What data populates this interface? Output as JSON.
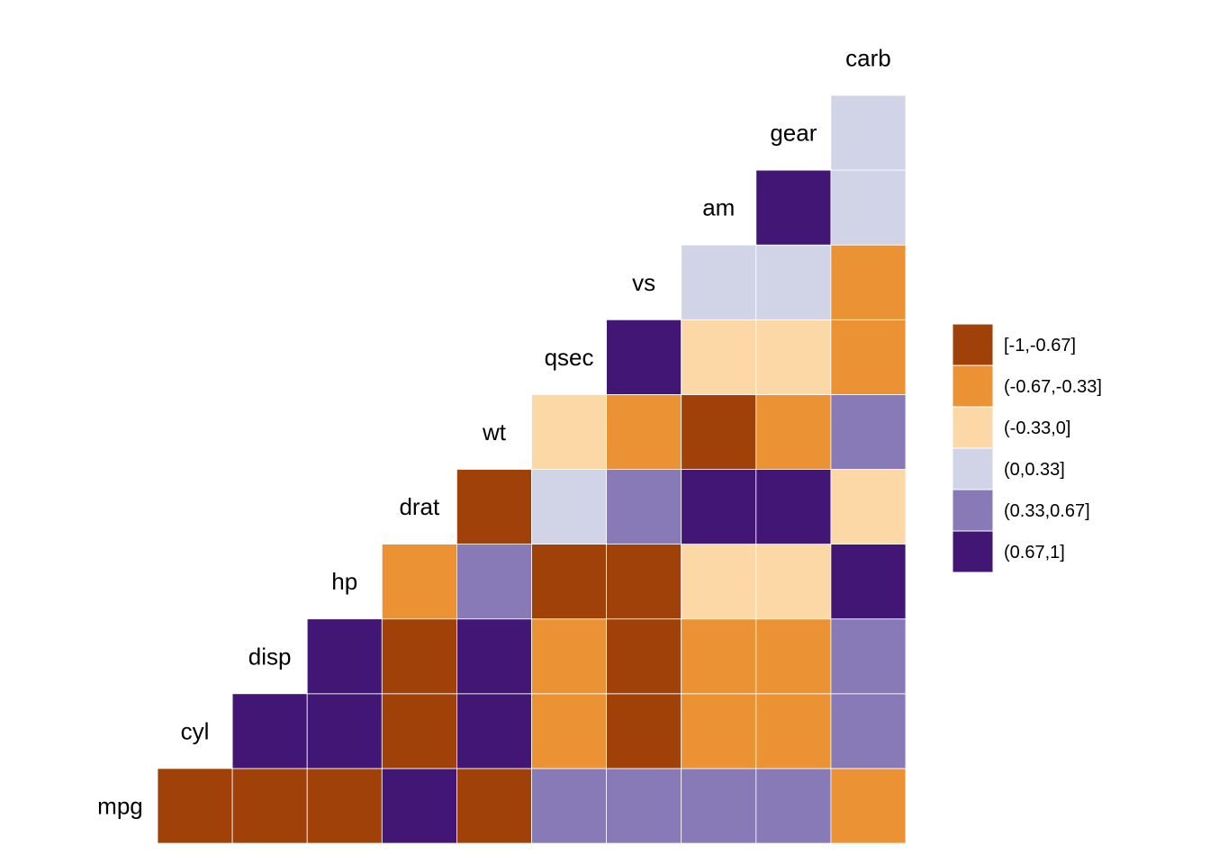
{
  "chart_data": {
    "type": "heatmap",
    "variables": [
      "mpg",
      "cyl",
      "disp",
      "hp",
      "drat",
      "wt",
      "qsec",
      "vs",
      "am",
      "gear",
      "carb"
    ],
    "legend": {
      "bins": [
        {
          "label": "[-1,-0.67]",
          "color": "#A04109"
        },
        {
          "label": "(-0.67,-0.33]",
          "color": "#EB9334"
        },
        {
          "label": "(-0.33,0]",
          "color": "#FDD8A7"
        },
        {
          "label": "(0,0.33]",
          "color": "#D1D3E6"
        },
        {
          "label": "(0.33,0.67]",
          "color": "#8879B7"
        },
        {
          "label": "(0.67,1]",
          "color": "#411675"
        }
      ]
    },
    "cells": [
      {
        "row": "mpg",
        "col": "mpg",
        "bin": "[-1,-0.67]"
      },
      {
        "row": "mpg",
        "col": "cyl",
        "bin": "[-1,-0.67]"
      },
      {
        "row": "mpg",
        "col": "disp",
        "bin": "[-1,-0.67]"
      },
      {
        "row": "mpg",
        "col": "hp",
        "bin": "(0.67,1]"
      },
      {
        "row": "mpg",
        "col": "drat",
        "bin": "[-1,-0.67]"
      },
      {
        "row": "mpg",
        "col": "wt",
        "bin": "(0.33,0.67]"
      },
      {
        "row": "mpg",
        "col": "qsec",
        "bin": "(0.33,0.67]"
      },
      {
        "row": "mpg",
        "col": "vs",
        "bin": "(0.33,0.67]"
      },
      {
        "row": "mpg",
        "col": "am",
        "bin": "(0.33,0.67]"
      },
      {
        "row": "mpg",
        "col": "gear",
        "bin": "(-0.67,-0.33]"
      },
      {
        "row": "cyl",
        "col": "cyl",
        "bin": "(0.67,1]"
      },
      {
        "row": "cyl",
        "col": "disp",
        "bin": "(0.67,1]"
      },
      {
        "row": "cyl",
        "col": "hp",
        "bin": "[-1,-0.67]"
      },
      {
        "row": "cyl",
        "col": "drat",
        "bin": "(0.67,1]"
      },
      {
        "row": "cyl",
        "col": "wt",
        "bin": "(-0.67,-0.33]"
      },
      {
        "row": "cyl",
        "col": "qsec",
        "bin": "[-1,-0.67]"
      },
      {
        "row": "cyl",
        "col": "vs",
        "bin": "(-0.67,-0.33]"
      },
      {
        "row": "cyl",
        "col": "am",
        "bin": "(-0.67,-0.33]"
      },
      {
        "row": "cyl",
        "col": "gear",
        "bin": "(0.33,0.67]"
      },
      {
        "row": "disp",
        "col": "disp",
        "bin": "(0.67,1]"
      },
      {
        "row": "disp",
        "col": "hp",
        "bin": "[-1,-0.67]"
      },
      {
        "row": "disp",
        "col": "drat",
        "bin": "(0.67,1]"
      },
      {
        "row": "disp",
        "col": "wt",
        "bin": "(-0.67,-0.33]"
      },
      {
        "row": "disp",
        "col": "qsec",
        "bin": "[-1,-0.67]"
      },
      {
        "row": "disp",
        "col": "vs",
        "bin": "(-0.67,-0.33]"
      },
      {
        "row": "disp",
        "col": "am",
        "bin": "(-0.67,-0.33]"
      },
      {
        "row": "disp",
        "col": "gear",
        "bin": "(0.33,0.67]"
      },
      {
        "row": "hp",
        "col": "hp",
        "bin": "(-0.67,-0.33]"
      },
      {
        "row": "hp",
        "col": "drat",
        "bin": "(0.33,0.67]"
      },
      {
        "row": "hp",
        "col": "wt",
        "bin": "[-1,-0.67]"
      },
      {
        "row": "hp",
        "col": "qsec",
        "bin": "[-1,-0.67]"
      },
      {
        "row": "hp",
        "col": "vs",
        "bin": "(-0.33,0]"
      },
      {
        "row": "hp",
        "col": "am",
        "bin": "(-0.33,0]"
      },
      {
        "row": "hp",
        "col": "gear",
        "bin": "(0.67,1]"
      },
      {
        "row": "drat",
        "col": "drat",
        "bin": "[-1,-0.67]"
      },
      {
        "row": "drat",
        "col": "wt",
        "bin": "(0,0.33]"
      },
      {
        "row": "drat",
        "col": "qsec",
        "bin": "(0.33,0.67]"
      },
      {
        "row": "drat",
        "col": "vs",
        "bin": "(0.67,1]"
      },
      {
        "row": "drat",
        "col": "am",
        "bin": "(0.67,1]"
      },
      {
        "row": "drat",
        "col": "gear",
        "bin": "(-0.33,0]"
      },
      {
        "row": "wt",
        "col": "wt",
        "bin": "(-0.33,0]"
      },
      {
        "row": "wt",
        "col": "qsec",
        "bin": "(-0.67,-0.33]"
      },
      {
        "row": "wt",
        "col": "vs",
        "bin": "[-1,-0.67]"
      },
      {
        "row": "wt",
        "col": "am",
        "bin": "(-0.67,-0.33]"
      },
      {
        "row": "wt",
        "col": "gear",
        "bin": "(0.33,0.67]"
      },
      {
        "row": "qsec",
        "col": "qsec",
        "bin": "(0.67,1]"
      },
      {
        "row": "qsec",
        "col": "vs",
        "bin": "(-0.33,0]"
      },
      {
        "row": "qsec",
        "col": "am",
        "bin": "(-0.33,0]"
      },
      {
        "row": "qsec",
        "col": "gear",
        "bin": "(-0.67,-0.33]"
      },
      {
        "row": "vs",
        "col": "vs",
        "bin": "(0,0.33]"
      },
      {
        "row": "vs",
        "col": "am",
        "bin": "(0,0.33]"
      },
      {
        "row": "vs",
        "col": "gear",
        "bin": "(-0.67,-0.33]"
      },
      {
        "row": "am",
        "col": "am",
        "bin": "(0.67,1]"
      },
      {
        "row": "am",
        "col": "gear",
        "bin": "(0,0.33]"
      },
      {
        "row": "gear",
        "col": "gear",
        "bin": "(0,0.33]"
      }
    ]
  }
}
